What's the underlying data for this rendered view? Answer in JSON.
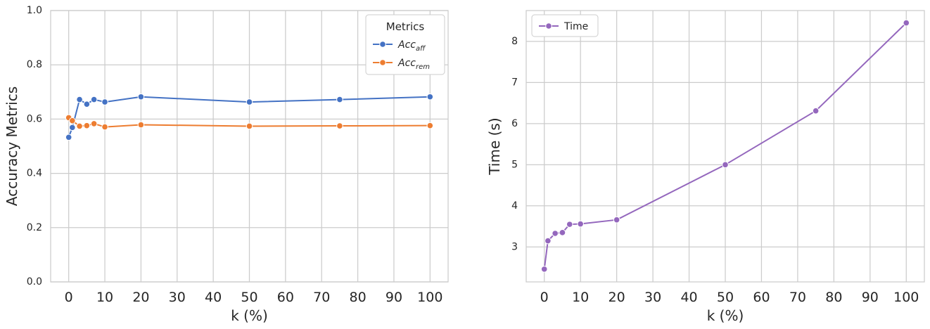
{
  "chart_data": [
    {
      "type": "line",
      "title": "",
      "xlabel": "k (%)",
      "ylabel": "Accuracy Metrics",
      "xlim": [
        -5,
        105
      ],
      "ylim": [
        0,
        1
      ],
      "xticks": [
        "0",
        "10",
        "20",
        "30",
        "40",
        "50",
        "60",
        "70",
        "80",
        "90",
        "100"
      ],
      "yticks": [
        "0.0",
        "0.2",
        "0.4",
        "0.6",
        "0.8",
        "1.0"
      ],
      "grid": true,
      "legend": {
        "title": "Metrics",
        "placement": "top-right"
      },
      "x": [
        0,
        1,
        3,
        5,
        7,
        10,
        20,
        50,
        75,
        100
      ],
      "series": [
        {
          "name": "Acc_aff",
          "label_main": "Acc",
          "label_sub": "aff",
          "color": "#4472c4",
          "values": [
            0.533,
            0.569,
            0.672,
            0.655,
            0.672,
            0.663,
            0.682,
            0.663,
            0.672,
            0.682
          ]
        },
        {
          "name": "Acc_rem",
          "label_main": "Acc",
          "label_sub": "rem",
          "color": "#ed7d31",
          "values": [
            0.605,
            0.594,
            0.574,
            0.576,
            0.583,
            0.571,
            0.579,
            0.574,
            0.575,
            0.576
          ]
        }
      ]
    },
    {
      "type": "line",
      "title": "",
      "xlabel": "k (%)",
      "ylabel": "Time (s)",
      "xlim": [
        -5,
        105
      ],
      "ylim": [
        2.15,
        8.75
      ],
      "xticks": [
        "0",
        "10",
        "20",
        "30",
        "40",
        "50",
        "60",
        "70",
        "80",
        "90",
        "100"
      ],
      "yticks": [
        "3",
        "4",
        "5",
        "6",
        "7",
        "8"
      ],
      "grid": true,
      "legend": {
        "title": "",
        "placement": "top-left"
      },
      "x": [
        0,
        1,
        3,
        5,
        7,
        10,
        20,
        50,
        75,
        100
      ],
      "series": [
        {
          "name": "Time",
          "label_main": "Time",
          "label_sub": "",
          "color": "#9467bd",
          "values": [
            2.46,
            3.15,
            3.33,
            3.35,
            3.55,
            3.56,
            3.66,
            5.0,
            6.31,
            8.45
          ]
        }
      ]
    }
  ]
}
